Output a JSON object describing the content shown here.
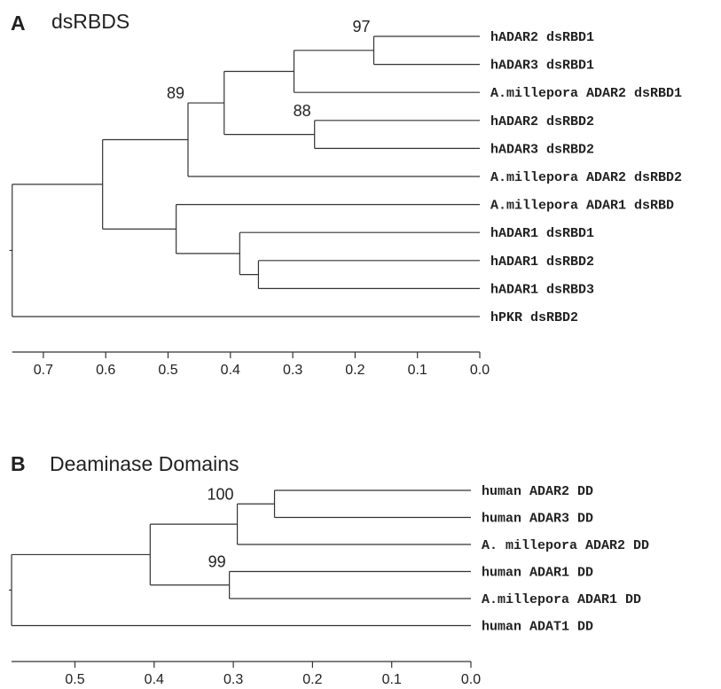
{
  "panels": [
    {
      "letter": "A",
      "title": "dsRBDS",
      "axis": {
        "min": 0.0,
        "max": 0.7,
        "ticks": [
          0.7,
          0.6,
          0.5,
          0.4,
          0.3,
          0.2,
          0.1,
          0.0
        ],
        "tick_labels": [
          "0.7",
          "0.6",
          "0.5",
          "0.4",
          "0.3",
          "0.2",
          "0.1",
          "0.0"
        ]
      },
      "tree": {
        "height": 0.75,
        "children": [
          {
            "height": 0.605,
            "children": [
              {
                "height": 0.468,
                "bootstrap": "89",
                "children": [
                  {
                    "height": 0.41,
                    "children": [
                      {
                        "height": 0.298,
                        "children": [
                          {
                            "height": 0.17,
                            "bootstrap": "97",
                            "children": [
                              {
                                "label": "hADAR2 dsRBD1"
                              },
                              {
                                "label": "hADAR3 dsRBD1"
                              }
                            ]
                          },
                          {
                            "label": "A.millepora ADAR2 dsRBD1"
                          }
                        ]
                      },
                      {
                        "height": 0.265,
                        "bootstrap": "88",
                        "children": [
                          {
                            "label": "hADAR2 dsRBD2"
                          },
                          {
                            "label": "hADAR3 dsRBD2"
                          }
                        ]
                      }
                    ]
                  },
                  {
                    "label": "A.millepora ADAR2 dsRBD2"
                  }
                ]
              },
              {
                "height": 0.487,
                "children": [
                  {
                    "label": "A.millepora ADAR1 dsRBD"
                  },
                  {
                    "height": 0.385,
                    "children": [
                      {
                        "label": "hADAR1 dsRBD1"
                      },
                      {
                        "height": 0.355,
                        "children": [
                          {
                            "label": "hADAR1 dsRBD2"
                          },
                          {
                            "label": "hADAR1 dsRBD3"
                          }
                        ]
                      }
                    ]
                  }
                ]
              }
            ]
          },
          {
            "label": "hPKR dsRBD2"
          }
        ]
      }
    },
    {
      "letter": "B",
      "title": "Deaminase Domains",
      "axis": {
        "min": 0.0,
        "max": 0.5,
        "ticks": [
          0.5,
          0.4,
          0.3,
          0.2,
          0.1,
          0.0
        ],
        "tick_labels": [
          "0.5",
          "0.4",
          "0.3",
          "0.2",
          "0.1",
          "0.0"
        ]
      },
      "tree": {
        "height": 0.58,
        "children": [
          {
            "height": 0.405,
            "children": [
              {
                "height": 0.295,
                "bootstrap": "100",
                "children": [
                  {
                    "height": 0.248,
                    "children": [
                      {
                        "label": "human ADAR2 DD"
                      },
                      {
                        "label": "human ADAR3 DD"
                      }
                    ]
                  },
                  {
                    "label": "A. millepora ADAR2 DD"
                  }
                ]
              },
              {
                "height": 0.305,
                "bootstrap": "99",
                "children": [
                  {
                    "label": "human ADAR1 DD"
                  },
                  {
                    "label": "A.millepora ADAR1 DD"
                  }
                ]
              }
            ]
          },
          {
            "label": "human ADAT1 DD"
          }
        ]
      }
    }
  ]
}
